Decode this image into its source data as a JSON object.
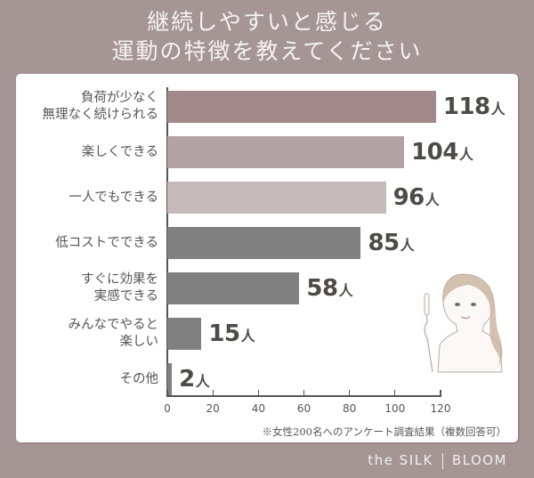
{
  "title": {
    "line1": "継続しやすいと感じる",
    "line2": "運動の特徴を教えてください"
  },
  "colors": {
    "background": "#a59595",
    "card": "#ffffff",
    "bar_shades": [
      "#a08a8b",
      "#b3a3a4",
      "#c6b9ba",
      "#808080",
      "#808080",
      "#808080",
      "#808080"
    ]
  },
  "chart_data": {
    "type": "bar",
    "orientation": "horizontal",
    "title": "継続しやすいと感じる運動の特徴を教えてください",
    "categories": [
      "負荷が少なく無理なく続けられる",
      "楽しくできる",
      "一人でもできる",
      "低コストでできる",
      "すぐに効果を実感できる",
      "みんなでやると楽しい",
      "その他"
    ],
    "values": [
      118,
      104,
      96,
      85,
      58,
      15,
      2
    ],
    "unit": "人",
    "xlabel": "",
    "ylabel": "",
    "xlim": [
      0,
      120
    ],
    "xticks": [
      0,
      20,
      40,
      60,
      80,
      100,
      120
    ],
    "grid": false,
    "legend": "none",
    "note": "※女性200名へのアンケート調査結果（複数回答可）"
  },
  "rows": [
    {
      "label1": "負荷が少なく",
      "label2": "無理なく続けられる",
      "value": "118",
      "unit": "人"
    },
    {
      "label1": "楽しくできる",
      "label2": "",
      "value": "104",
      "unit": "人"
    },
    {
      "label1": "一人でもできる",
      "label2": "",
      "value": "96",
      "unit": "人"
    },
    {
      "label1": "低コストでできる",
      "label2": "",
      "value": "85",
      "unit": "人"
    },
    {
      "label1": "すぐに効果を",
      "label2": "実感できる",
      "value": "58",
      "unit": "人"
    },
    {
      "label1": "みんなでやると",
      "label2": "楽しい",
      "value": "15",
      "unit": "人"
    },
    {
      "label1": "その他",
      "label2": "",
      "value": "2",
      "unit": "人"
    }
  ],
  "axis": {
    "ticks": [
      "0",
      "20",
      "40",
      "60",
      "80",
      "100",
      "120"
    ]
  },
  "footnote": "※女性200名へのアンケート調査結果（複数回答可）",
  "brand": {
    "left": "the SILK",
    "right": "BLOOM"
  },
  "illustration": "woman-pointing-finger-icon"
}
